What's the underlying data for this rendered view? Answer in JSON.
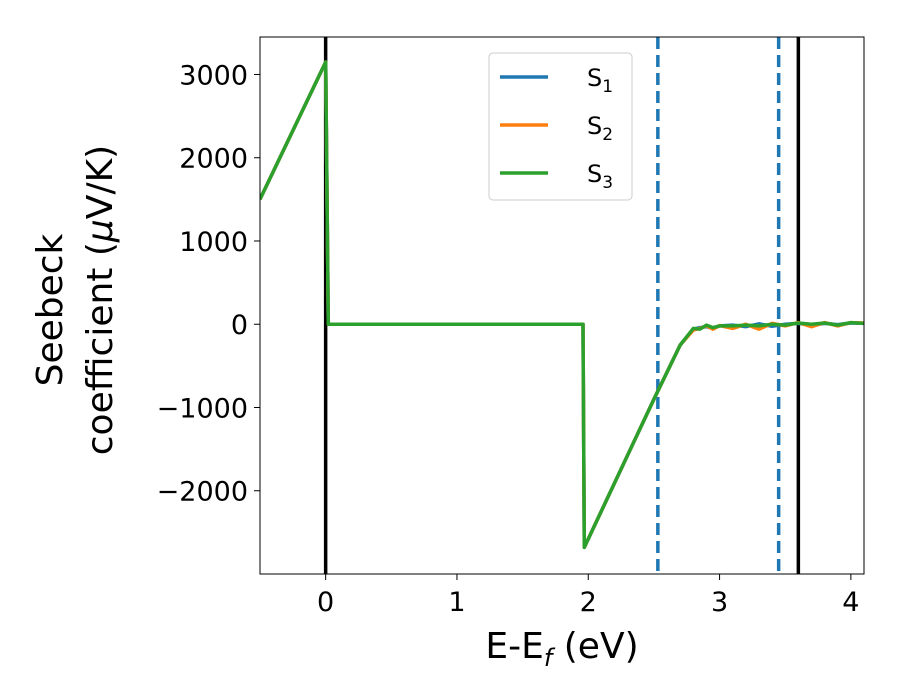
{
  "chart_data": {
    "type": "line",
    "xlabel": "E-E",
    "xlabel_sub": "f",
    "xlabel_unit": " (eV)",
    "ylabel_line1": "Seebeck",
    "ylabel_line2": "coefficient  (",
    "ylabel_mu": "μ",
    "ylabel_unit": "V/K)",
    "xlim": [
      -0.5,
      4.1
    ],
    "ylim": [
      -3000,
      3450
    ],
    "xticks": [
      0,
      1,
      2,
      3,
      4
    ],
    "xtick_labels": [
      "0",
      "1",
      "2",
      "3",
      "4"
    ],
    "yticks": [
      -2000,
      -1000,
      0,
      1000,
      2000,
      3000
    ],
    "ytick_labels": [
      "−2000",
      "−1000",
      "0",
      "1000",
      "2000",
      "3000"
    ],
    "grid": false,
    "legend_position": "top-center",
    "series": [
      {
        "name": "S",
        "sub": "1",
        "color": "#1f77b4",
        "x": [
          -0.5,
          0.0,
          0.02,
          1.96,
          1.97,
          2.5,
          2.7,
          2.8,
          2.85,
          2.9,
          2.95,
          3.0,
          3.1,
          3.2,
          3.3,
          3.4,
          3.5,
          3.6,
          3.7,
          3.8,
          3.9,
          4.0,
          4.1
        ],
        "y": [
          1500,
          3150,
          0,
          0,
          -2680,
          -900,
          -250,
          -60,
          -40,
          -30,
          -50,
          -20,
          -10,
          -30,
          5,
          -25,
          0,
          10,
          -10,
          10,
          -5,
          15,
          10
        ]
      },
      {
        "name": "S",
        "sub": "2",
        "color": "#ff7f0e",
        "x": [
          -0.5,
          0.0,
          0.02,
          1.96,
          1.97,
          2.5,
          2.7,
          2.8,
          2.85,
          2.9,
          2.95,
          3.0,
          3.1,
          3.2,
          3.3,
          3.4,
          3.5,
          3.6,
          3.7,
          3.8,
          3.9,
          4.0,
          4.1
        ],
        "y": [
          1500,
          3150,
          0,
          0,
          -2680,
          -900,
          -250,
          -70,
          -50,
          -20,
          -60,
          -15,
          -50,
          0,
          -60,
          10,
          -20,
          20,
          -30,
          20,
          -20,
          20,
          15
        ]
      },
      {
        "name": "S",
        "sub": "3",
        "color": "#2ca02c",
        "x": [
          -0.5,
          0.0,
          0.02,
          1.96,
          1.97,
          2.5,
          2.7,
          2.8,
          2.85,
          2.9,
          2.95,
          3.0,
          3.1,
          3.2,
          3.3,
          3.4,
          3.5,
          3.6,
          3.7,
          3.8,
          3.9,
          4.0,
          4.1
        ],
        "y": [
          1500,
          3150,
          0,
          0,
          -2680,
          -900,
          -250,
          -50,
          -60,
          -10,
          -40,
          -20,
          -20,
          -10,
          -20,
          0,
          -10,
          15,
          0,
          15,
          -10,
          20,
          10
        ]
      }
    ],
    "vlines": [
      {
        "x": 0.0,
        "style": "solid",
        "color": "#000000"
      },
      {
        "x": 3.6,
        "style": "solid",
        "color": "#000000"
      },
      {
        "x": 2.53,
        "style": "dashed",
        "color": "#1f77b4"
      },
      {
        "x": 3.45,
        "style": "dashed",
        "color": "#1f77b4"
      }
    ]
  }
}
